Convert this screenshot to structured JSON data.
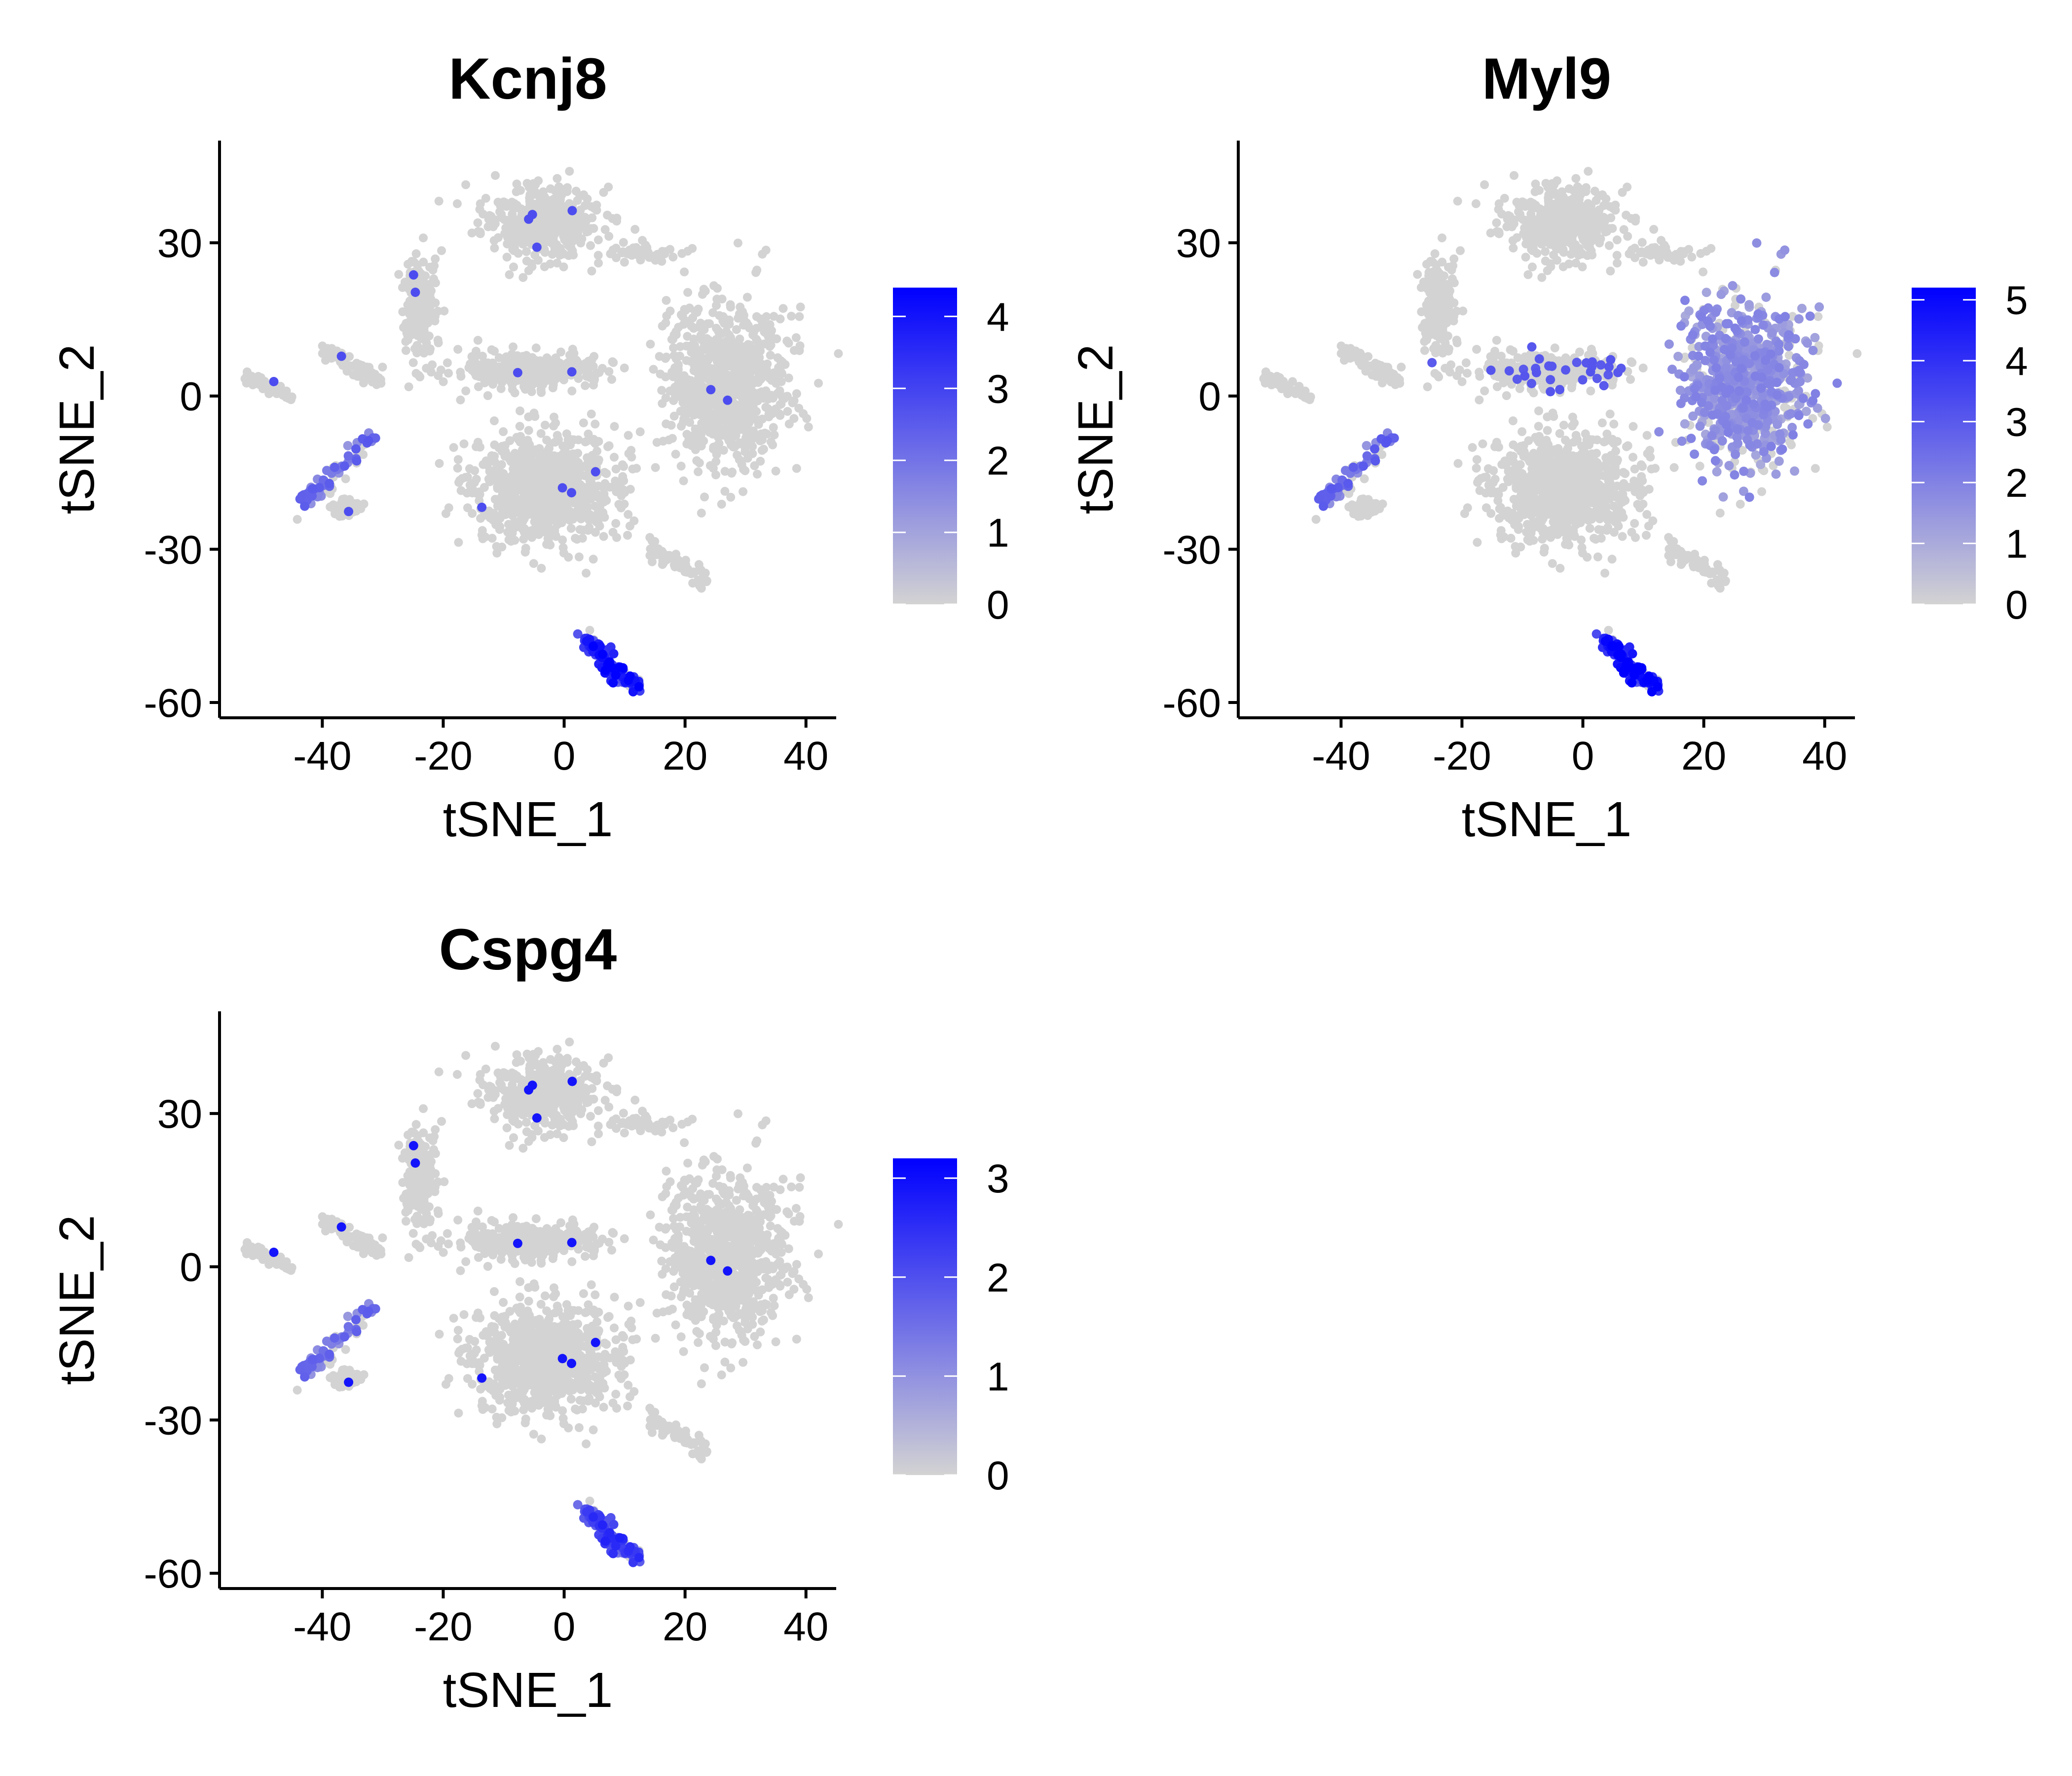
{
  "chart_data": [
    {
      "type": "scatter",
      "title": "Kcnj8",
      "xlabel": "tSNE_1",
      "ylabel": "tSNE_2",
      "xlim": [
        -57,
        45
      ],
      "ylim": [
        -63,
        50
      ],
      "xticks": [
        -40,
        -20,
        0,
        20,
        40
      ],
      "yticks": [
        -60,
        -30,
        0,
        30
      ],
      "grid": false,
      "legend": {
        "placement": "right",
        "min": 0,
        "max": 4.4,
        "ticks": [
          0,
          1,
          2,
          3,
          4
        ]
      },
      "colors": {
        "low": "#d3d3d3",
        "high": "#0000ff"
      },
      "expression": [
        {
          "cluster": "lower-left",
          "value": 2.0
        },
        {
          "cluster": "bottom",
          "value": 3.6
        },
        {
          "cluster": "scattered",
          "value": 2.8
        }
      ]
    },
    {
      "type": "scatter",
      "title": "Myl9",
      "xlabel": "tSNE_1",
      "ylabel": "tSNE_2",
      "xlim": [
        -57,
        45
      ],
      "ylim": [
        -63,
        50
      ],
      "xticks": [
        -40,
        -20,
        0,
        20,
        40
      ],
      "yticks": [
        -60,
        -30,
        0,
        30
      ],
      "grid": false,
      "legend": {
        "placement": "right",
        "min": 0,
        "max": 5.2,
        "ticks": [
          0,
          1,
          2,
          3,
          4,
          5
        ]
      },
      "colors": {
        "low": "#d3d3d3",
        "high": "#0000ff"
      },
      "expression": [
        {
          "cluster": "lower-left",
          "value": 2.4
        },
        {
          "cluster": "bottom",
          "value": 4.6
        },
        {
          "cluster": "right",
          "value": 1.6
        },
        {
          "cluster": "center",
          "value": 2.6
        }
      ]
    },
    {
      "type": "scatter",
      "title": "Cspg4",
      "xlabel": "tSNE_1",
      "ylabel": "tSNE_2",
      "xlim": [
        -57,
        45
      ],
      "ylim": [
        -63,
        50
      ],
      "xticks": [
        -40,
        -20,
        0,
        20,
        40
      ],
      "yticks": [
        -60,
        -30,
        0,
        30
      ],
      "grid": false,
      "legend": {
        "placement": "right",
        "min": 0,
        "max": 3.2,
        "ticks": [
          0,
          1,
          2,
          3
        ]
      },
      "colors": {
        "low": "#d3d3d3",
        "high": "#0000ff"
      },
      "expression": [
        {
          "cluster": "lower-left",
          "value": 1.4
        },
        {
          "cluster": "bottom",
          "value": 2.1
        },
        {
          "cluster": "scattered",
          "value": 2.9
        }
      ]
    }
  ],
  "tsne_clusters": [
    {
      "id": "top",
      "cx": -4,
      "cy": 34,
      "sx": 8,
      "sy": 6,
      "n": 420
    },
    {
      "id": "top-right-small",
      "cx": 12,
      "cy": 28,
      "sx": 6,
      "sy": 1.3,
      "n": 60
    },
    {
      "id": "upper-left-arm",
      "cx": -24,
      "cy": 18,
      "sx": 2.5,
      "sy": 8,
      "n": 180
    },
    {
      "id": "left-arm",
      "cx": -35,
      "cy": 6,
      "sx": 5,
      "sy": 2,
      "n": 60
    },
    {
      "id": "far-left",
      "cx": -49,
      "cy": 2,
      "sx": 4,
      "sy": 1.2,
      "n": 40
    },
    {
      "id": "center-band",
      "cx": -5,
      "cy": 5,
      "sx": 10,
      "sy": 2.8,
      "n": 300
    },
    {
      "id": "right",
      "cx": 27,
      "cy": 2,
      "sx": 8,
      "sy": 13,
      "n": 900
    },
    {
      "id": "center-lower",
      "cx": -3,
      "cy": -18,
      "sx": 10,
      "sy": 9,
      "n": 800
    },
    {
      "id": "lower-left",
      "cx": -41,
      "cy": -16,
      "sx": 4,
      "sy": 5,
      "n": 70
    },
    {
      "id": "lower-left-small",
      "cx": -36,
      "cy": -22,
      "sx": 2.2,
      "sy": 1.2,
      "n": 45
    },
    {
      "id": "diagonal",
      "cx": 19,
      "cy": -33,
      "sx": 5,
      "sy": 1,
      "n": 60
    },
    {
      "id": "bottom",
      "cx": 8,
      "cy": -52,
      "sx": 3,
      "sy": 3,
      "n": 120
    }
  ]
}
